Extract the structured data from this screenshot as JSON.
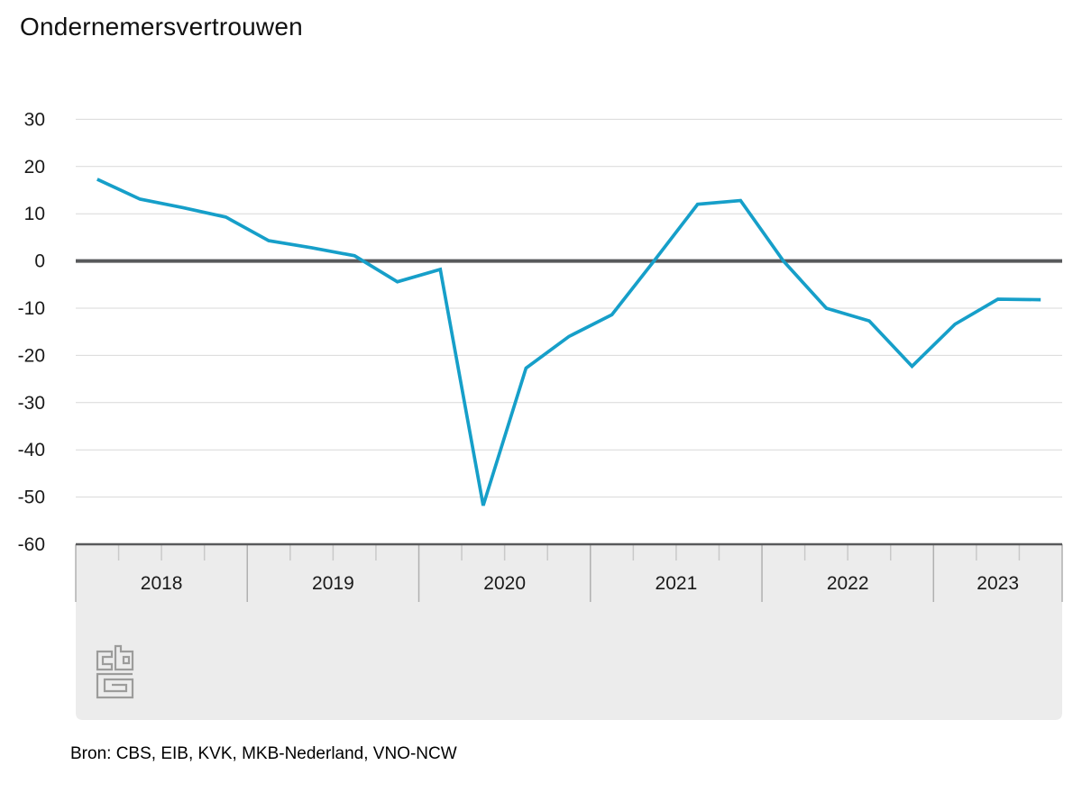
{
  "title": "Ondernemersvertrouwen",
  "source": "Bron: CBS, EIB, KVK, MKB-Nederland, VNO-NCW",
  "logo": "cbs-logo",
  "colors": {
    "line": "#169fc9",
    "zero_line": "#58595b",
    "axis_line": "#58595b",
    "grid_line": "#d9d9d9",
    "axis_band_bg": "#ececec",
    "year_tick": "#b0b0b0",
    "quarter_tick": "#c9c9c9",
    "text": "#1a1a1a",
    "logo_gray": "#9c9c9b"
  },
  "chart_data": {
    "type": "line",
    "title": "Ondernemersvertrouwen",
    "xlabel": "",
    "ylabel": "",
    "ylim": [
      -60,
      30
    ],
    "y_ticks": [
      30,
      20,
      10,
      0,
      -10,
      -20,
      -30,
      -40,
      -50,
      -60
    ],
    "grid": true,
    "zero_line": true,
    "legend_position": "none",
    "x_years": [
      "2018",
      "2019",
      "2020",
      "2021",
      "2022",
      "2023"
    ],
    "quarters_per_year": [
      4,
      4,
      4,
      4,
      4,
      3
    ],
    "x": [
      "2018 Q1",
      "2018 Q2",
      "2018 Q3",
      "2018 Q4",
      "2019 Q1",
      "2019 Q2",
      "2019 Q3",
      "2019 Q4",
      "2020 Q1",
      "2020 Q2",
      "2020 Q3",
      "2020 Q4",
      "2021 Q1",
      "2021 Q2",
      "2021 Q3",
      "2021 Q4",
      "2022 Q1",
      "2022 Q2",
      "2022 Q3",
      "2022 Q4",
      "2023 Q1",
      "2023 Q2",
      "2023 Q3"
    ],
    "series": [
      {
        "name": "Ondernemersvertrouwen",
        "values": [
          17.3,
          13.1,
          11.3,
          9.3,
          4.3,
          2.8,
          1.1,
          -4.4,
          -1.8,
          -51.8,
          -22.7,
          -16.0,
          -11.4,
          0.2,
          12.0,
          12.8,
          0.0,
          -10.0,
          -12.7,
          -22.3,
          -13.4,
          -8.1,
          -8.2
        ]
      }
    ]
  }
}
